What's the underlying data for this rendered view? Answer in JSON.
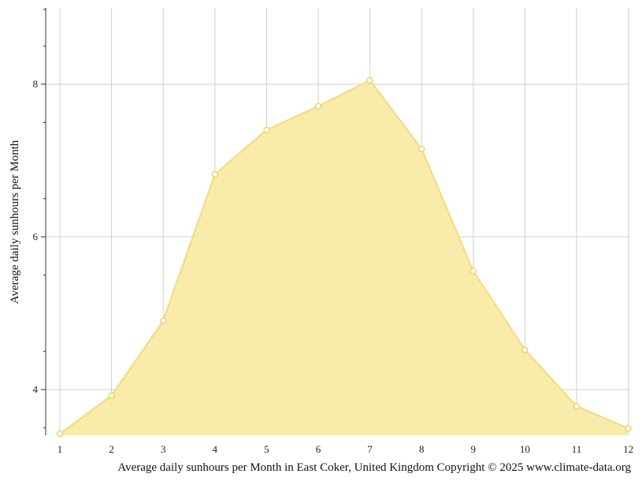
{
  "chart_data": {
    "type": "area",
    "title": "",
    "caption": "Average daily sunhours per Month in East Coker, United Kingdom Copyright © 2025 www.climate-data.org",
    "xlabel": "",
    "ylabel": "Average daily sunhours per Month",
    "x": [
      "1",
      "2",
      "3",
      "4",
      "5",
      "6",
      "7",
      "8",
      "9",
      "10",
      "11",
      "12"
    ],
    "series": [
      {
        "name": "",
        "values": [
          3.42,
          3.92,
          4.9,
          6.82,
          7.4,
          7.71,
          8.05,
          7.15,
          5.55,
          4.52,
          3.78,
          3.49
        ]
      }
    ],
    "y_ticks": [
      "4",
      "6",
      "8"
    ],
    "ylim": [
      3.4,
      9.0
    ],
    "grid": true,
    "colors": {
      "fill": "#f8eaa2",
      "line": "#f2df88",
      "marker_fill": "#ffffff",
      "marker_stroke": "#e6cf55",
      "grid": "#d0d0d0",
      "axis": "#333333"
    }
  }
}
